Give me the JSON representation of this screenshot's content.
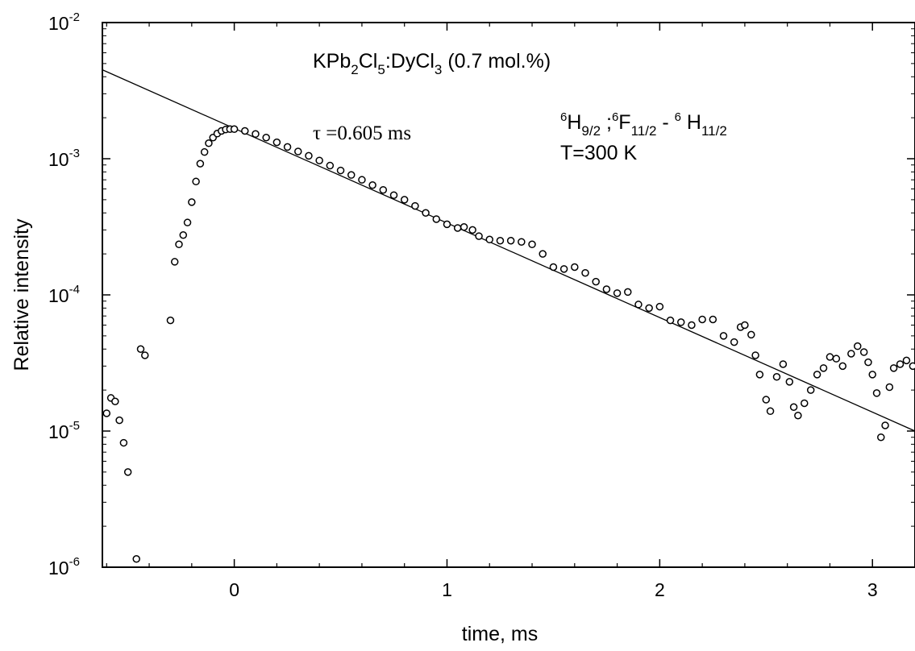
{
  "chart_data": {
    "type": "scatter",
    "xlabel": "time, ms",
    "ylabel": "Relative intensity",
    "xlim": [
      -0.62,
      3.2
    ],
    "ylim": [
      1e-06,
      0.01
    ],
    "yscale": "log",
    "x_ticks": [
      "0",
      "1",
      "2",
      "3"
    ],
    "y_ticks": [
      {
        "base": "10",
        "exp": "-6"
      },
      {
        "base": "10",
        "exp": "-5"
      },
      {
        "base": "10",
        "exp": "-4"
      },
      {
        "base": "10",
        "exp": "-3"
      },
      {
        "base": "10",
        "exp": "-2"
      }
    ],
    "annotations": {
      "compound": [
        {
          "t": "KPb",
          "s": "n"
        },
        {
          "t": "2",
          "s": "sub"
        },
        {
          "t": "Cl",
          "s": "n"
        },
        {
          "t": "5",
          "s": "sub"
        },
        {
          "t": ":DyCl",
          "s": "n"
        },
        {
          "t": "3",
          "s": "sub"
        },
        {
          "t": " (0.7 mol.%)",
          "s": "n"
        }
      ],
      "tau": "τ =0.605 ms",
      "transition": [
        {
          "t": "6",
          "s": "sup"
        },
        {
          "t": "H",
          "s": "n"
        },
        {
          "t": "9/2",
          "s": "sub"
        },
        {
          "t": " ;",
          "s": "n"
        },
        {
          "t": "6",
          "s": "sup"
        },
        {
          "t": "F",
          "s": "n"
        },
        {
          "t": "11/2",
          "s": "sub"
        },
        {
          "t": " - ",
          "s": "n"
        },
        {
          "t": "6",
          "s": "sup"
        },
        {
          "t": " H",
          "s": "n"
        },
        {
          "t": "11/2",
          "s": "sub"
        }
      ],
      "temperature": "T=300 K"
    },
    "series": [
      {
        "style": "markers",
        "points": [
          [
            -0.6,
            1.35e-05
          ],
          [
            -0.58,
            1.75e-05
          ],
          [
            -0.56,
            1.65e-05
          ],
          [
            -0.54,
            1.2e-05
          ],
          [
            -0.52,
            8.2e-06
          ],
          [
            -0.5,
            5e-06
          ],
          [
            -0.46,
            1.15e-06
          ],
          [
            -0.44,
            4e-05
          ],
          [
            -0.42,
            3.6e-05
          ],
          [
            -0.3,
            6.5e-05
          ],
          [
            -0.28,
            0.000175
          ],
          [
            -0.26,
            0.000235
          ],
          [
            -0.24,
            0.000275
          ],
          [
            -0.22,
            0.00034
          ],
          [
            -0.2,
            0.00048
          ],
          [
            -0.18,
            0.00068
          ],
          [
            -0.16,
            0.00092
          ],
          [
            -0.14,
            0.00112
          ],
          [
            -0.12,
            0.0013
          ],
          [
            -0.1,
            0.00143
          ],
          [
            -0.08,
            0.00153
          ],
          [
            -0.06,
            0.0016
          ],
          [
            -0.04,
            0.00164
          ],
          [
            -0.02,
            0.00165
          ],
          [
            0.0,
            0.00165
          ],
          [
            0.05,
            0.0016
          ],
          [
            0.1,
            0.00152
          ],
          [
            0.15,
            0.00143
          ],
          [
            0.2,
            0.00132
          ],
          [
            0.25,
            0.00122
          ],
          [
            0.3,
            0.00113
          ],
          [
            0.35,
            0.00105
          ],
          [
            0.4,
            0.00097
          ],
          [
            0.45,
            0.00089
          ],
          [
            0.5,
            0.00082
          ],
          [
            0.55,
            0.00076
          ],
          [
            0.6,
            0.0007
          ],
          [
            0.65,
            0.00064
          ],
          [
            0.7,
            0.00059
          ],
          [
            0.75,
            0.00054
          ],
          [
            0.8,
            0.0005
          ],
          [
            0.85,
            0.00045
          ],
          [
            0.9,
            0.0004
          ],
          [
            0.95,
            0.00036
          ],
          [
            1.0,
            0.00033
          ],
          [
            1.05,
            0.00031
          ],
          [
            1.08,
            0.000315
          ],
          [
            1.12,
            0.0003
          ],
          [
            1.15,
            0.00027
          ],
          [
            1.2,
            0.000255
          ],
          [
            1.25,
            0.00025
          ],
          [
            1.3,
            0.00025
          ],
          [
            1.35,
            0.000245
          ],
          [
            1.4,
            0.000235
          ],
          [
            1.45,
            0.0002
          ],
          [
            1.5,
            0.00016
          ],
          [
            1.55,
            0.000155
          ],
          [
            1.6,
            0.00016
          ],
          [
            1.65,
            0.000145
          ],
          [
            1.7,
            0.000125
          ],
          [
            1.75,
            0.00011
          ],
          [
            1.8,
            0.000103
          ],
          [
            1.85,
            0.000105
          ],
          [
            1.9,
            8.5e-05
          ],
          [
            1.95,
            8e-05
          ],
          [
            2.0,
            8.2e-05
          ],
          [
            2.05,
            6.5e-05
          ],
          [
            2.1,
            6.3e-05
          ],
          [
            2.15,
            6e-05
          ],
          [
            2.2,
            6.6e-05
          ],
          [
            2.25,
            6.6e-05
          ],
          [
            2.3,
            5e-05
          ],
          [
            2.35,
            4.5e-05
          ],
          [
            2.38,
            5.8e-05
          ],
          [
            2.4,
            6e-05
          ],
          [
            2.43,
            5.1e-05
          ],
          [
            2.45,
            3.6e-05
          ],
          [
            2.47,
            2.6e-05
          ],
          [
            2.5,
            1.7e-05
          ],
          [
            2.52,
            1.4e-05
          ],
          [
            2.55,
            2.5e-05
          ],
          [
            2.58,
            3.1e-05
          ],
          [
            2.61,
            2.3e-05
          ],
          [
            2.63,
            1.5e-05
          ],
          [
            2.65,
            1.3e-05
          ],
          [
            2.68,
            1.6e-05
          ],
          [
            2.71,
            2e-05
          ],
          [
            2.74,
            2.6e-05
          ],
          [
            2.77,
            2.9e-05
          ],
          [
            2.8,
            3.5e-05
          ],
          [
            2.83,
            3.4e-05
          ],
          [
            2.86,
            3e-05
          ],
          [
            2.9,
            3.7e-05
          ],
          [
            2.93,
            4.2e-05
          ],
          [
            2.96,
            3.8e-05
          ],
          [
            2.98,
            3.2e-05
          ],
          [
            3.0,
            2.6e-05
          ],
          [
            3.02,
            1.9e-05
          ],
          [
            3.04,
            9e-06
          ],
          [
            3.06,
            1.1e-05
          ],
          [
            3.08,
            2.1e-05
          ],
          [
            3.1,
            2.9e-05
          ],
          [
            3.13,
            3.1e-05
          ],
          [
            3.16,
            3.3e-05
          ],
          [
            3.19,
            3e-05
          ]
        ]
      },
      {
        "style": "line",
        "points": [
          [
            -0.62,
            0.0045
          ],
          [
            3.2,
            1e-05
          ]
        ]
      }
    ]
  }
}
